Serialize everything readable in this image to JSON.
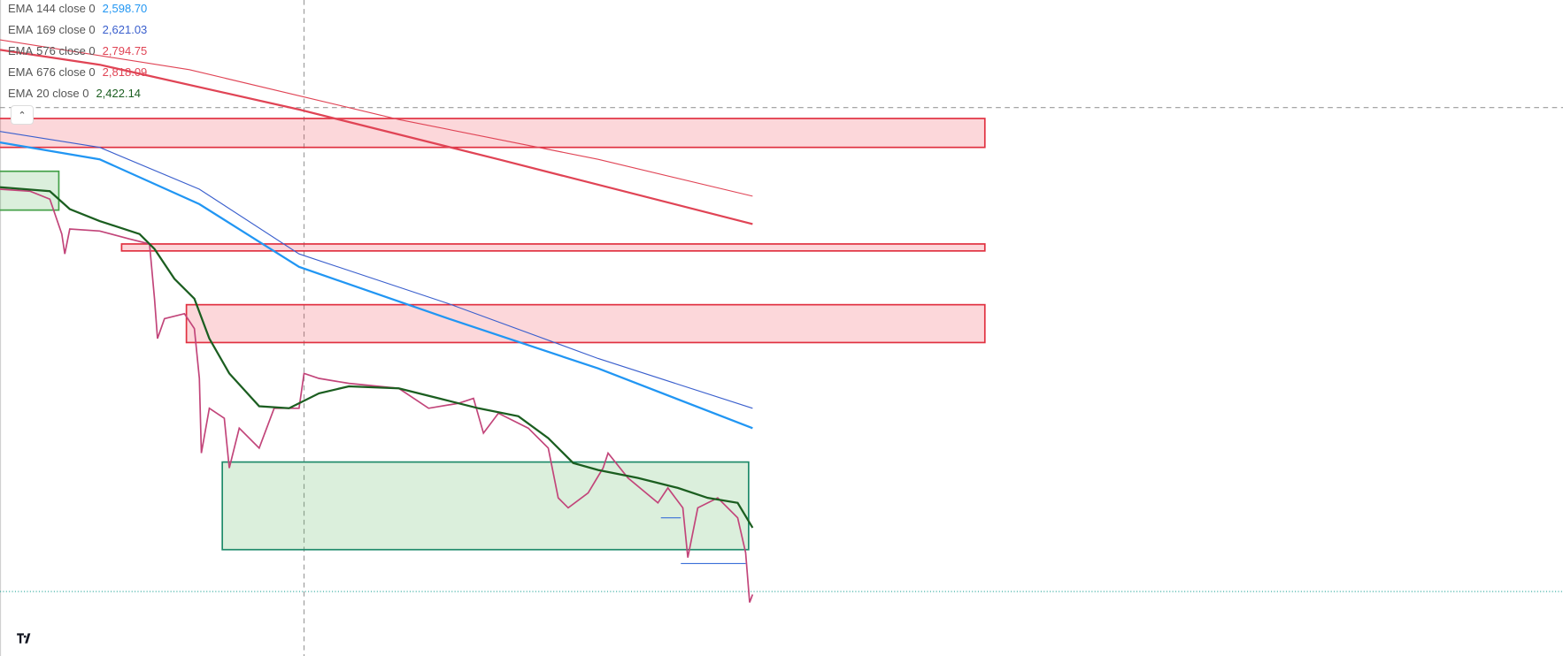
{
  "legend": [
    {
      "name": "EMA",
      "params": "144 close 0",
      "value": "2,598.70",
      "color": "#2196f3"
    },
    {
      "name": "EMA",
      "params": "169 close 0",
      "value": "2,621.03",
      "color": "#3a5fcd"
    },
    {
      "name": "EMA",
      "params": "576 close 0",
      "value": "2,794.75",
      "color": "#e04455"
    },
    {
      "name": "EMA",
      "params": "676 close 0",
      "value": "2,818.09",
      "color": "#e04455"
    },
    {
      "name": "EMA",
      "params": "20 close 0",
      "value": "2,422.14",
      "color": "#1b5e20"
    }
  ]
}
